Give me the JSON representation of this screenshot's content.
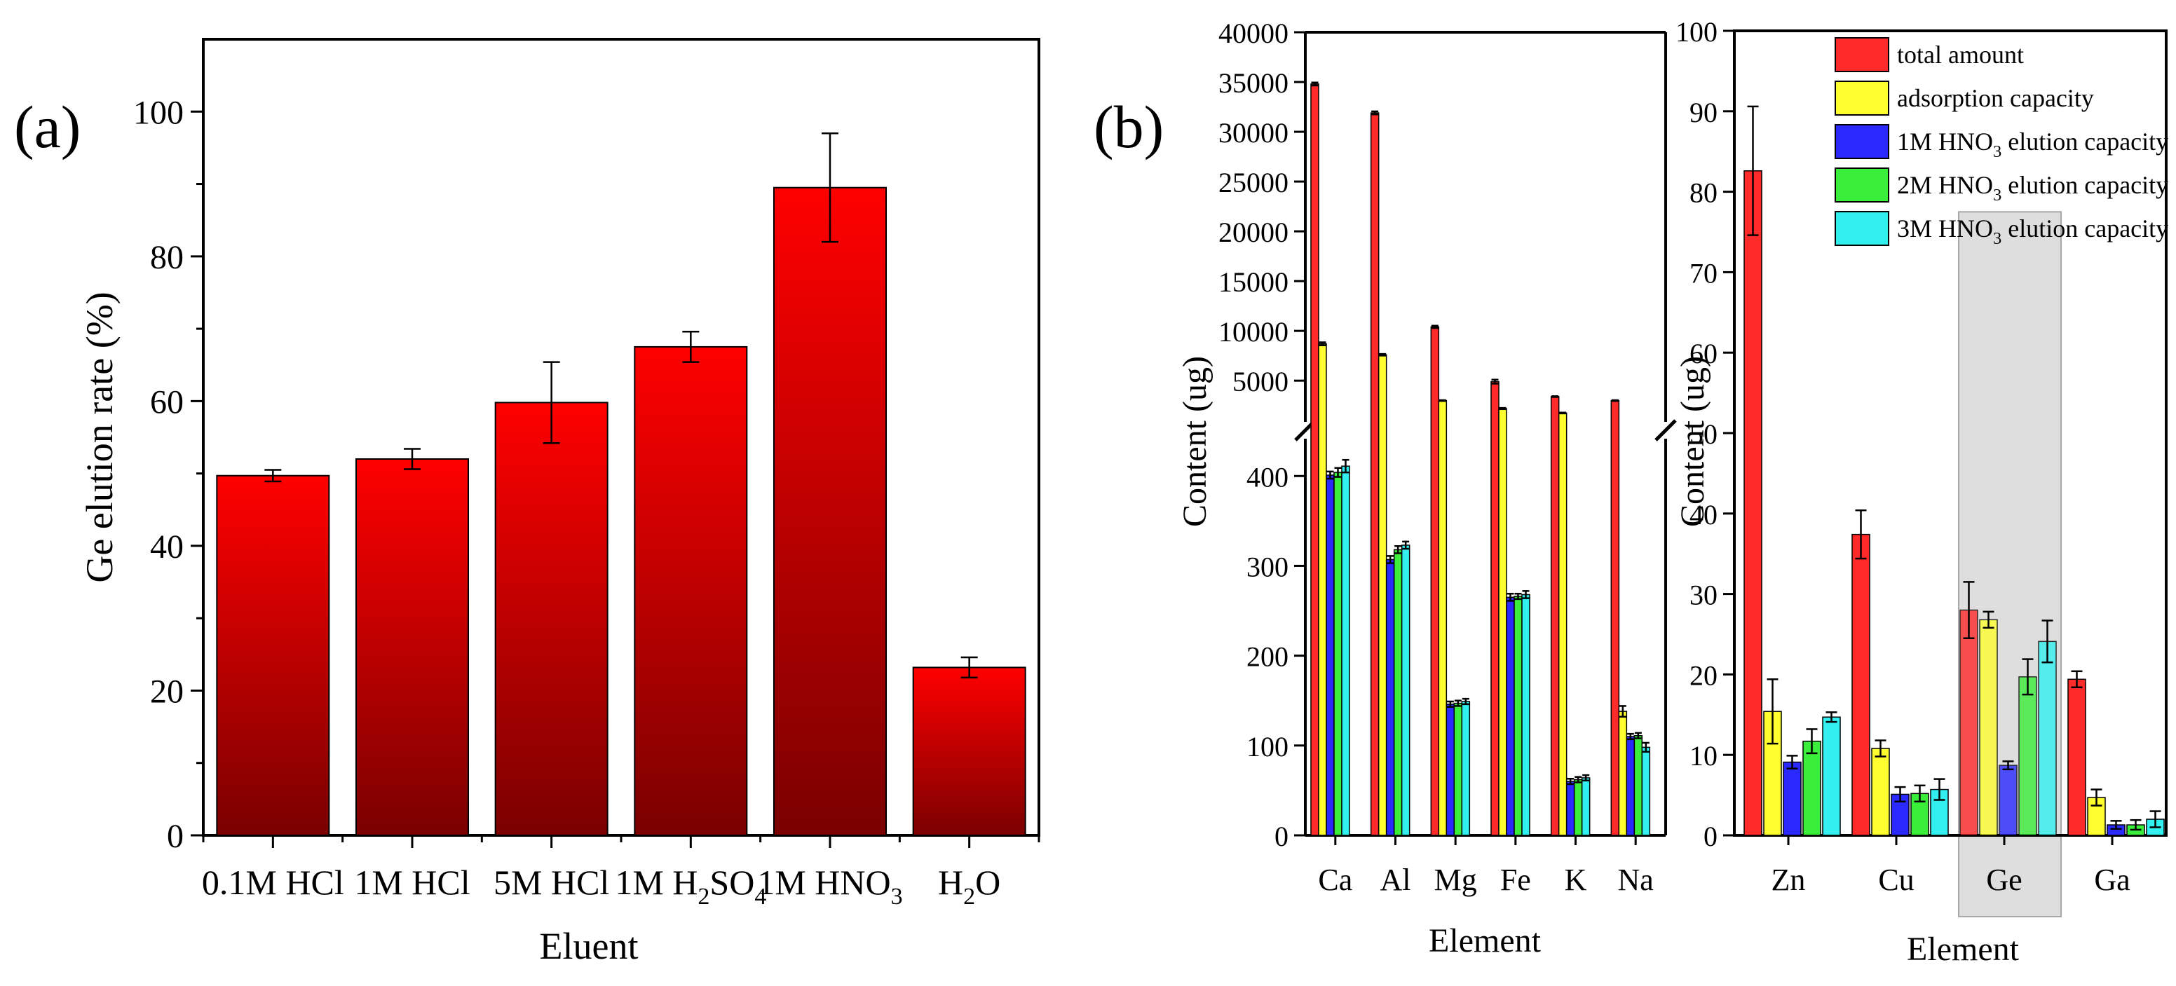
{
  "figure": {
    "panel_a_label": "(a)",
    "panel_b_label": "(b)"
  },
  "colors": {
    "panel_a_bar_top": "#ff0000",
    "panel_a_bar_bottom": "#7a0000",
    "total_amount": "#ff2a2a",
    "adsorption_capacity": "#ffff30",
    "hno3_1m": "#2a2aff",
    "hno3_2m": "#3aee3a",
    "hno3_3m": "#33f0f0",
    "highlight": "#d9d9d9"
  },
  "chart_data": [
    {
      "id": "a",
      "type": "bar",
      "categories": [
        "0.1M HCl",
        "1M HCl",
        "5M HCl",
        "1M H2SO4",
        "1M HNO3",
        "H2O"
      ],
      "category_labels": [
        {
          "main": "0.1M HCl"
        },
        {
          "main": "1M HCl"
        },
        {
          "main": "5M HCl"
        },
        {
          "main": "1M H",
          "sub": "2",
          "rest": "SO",
          "sub2": "4"
        },
        {
          "main": "1M HNO",
          "sub": "3"
        },
        {
          "main": "H",
          "sub": "2",
          "rest": "O"
        }
      ],
      "values": [
        49.7,
        52.0,
        59.8,
        67.5,
        89.5,
        23.2
      ],
      "errors": [
        0.8,
        1.4,
        5.6,
        2.1,
        7.5,
        1.4
      ],
      "xlabel": "Eluent",
      "ylabel": "Ge elution rate (%)",
      "ylim": [
        0,
        110
      ],
      "yticks": [
        0,
        20,
        40,
        60,
        80,
        100
      ],
      "grid": false
    },
    {
      "id": "b-left",
      "type": "bar",
      "categories": [
        "Ca",
        "Al",
        "Mg",
        "Fe",
        "K",
        "Na"
      ],
      "series": [
        {
          "name": "total amount",
          "values": [
            34800,
            31900,
            10400,
            4900,
            3400,
            3000
          ],
          "errors": [
            150,
            150,
            120,
            200,
            40,
            40
          ]
        },
        {
          "name": "adsorption capacity",
          "values": [
            8700,
            7600,
            3000,
            2200,
            1750,
            138
          ],
          "errors": [
            150,
            80,
            40,
            60,
            40,
            6
          ]
        },
        {
          "name": "1M HNO3 elution capacity",
          "values": [
            401,
            307,
            146,
            265,
            60,
            110
          ],
          "errors": [
            4,
            4,
            3,
            4,
            3,
            3
          ]
        },
        {
          "name": "2M HNO3 elution capacity",
          "values": [
            404,
            318,
            147,
            266,
            62,
            111
          ],
          "errors": [
            5,
            4,
            3,
            3,
            3,
            3
          ]
        },
        {
          "name": "3M HNO3 elution capacity",
          "values": [
            411,
            323,
            149,
            268,
            64,
            98
          ],
          "errors": [
            7,
            4,
            3,
            4,
            3,
            5
          ]
        }
      ],
      "xlabel": "Element",
      "ylabel": "Content (ug)",
      "axis_break": true,
      "lower_ylim": [
        0,
        440
      ],
      "lower_yticks": [
        0,
        100,
        200,
        300,
        400
      ],
      "upper_ylim": [
        1000,
        40000
      ],
      "upper_yticks": [
        5000,
        10000,
        15000,
        20000,
        25000,
        30000,
        35000,
        40000
      ],
      "grid": false
    },
    {
      "id": "b-right",
      "type": "bar",
      "categories": [
        "Zn",
        "Cu",
        "Ge",
        "Ga"
      ],
      "highlighted_category": "Ge",
      "series": [
        {
          "name": "total amount",
          "values": [
            82.6,
            37.4,
            28.0,
            19.4
          ],
          "errors": [
            8.0,
            3.0,
            3.5,
            1.0
          ]
        },
        {
          "name": "adsorption capacity",
          "values": [
            15.4,
            10.8,
            26.8,
            4.7
          ],
          "errors": [
            4.0,
            1.0,
            1.0,
            1.0
          ]
        },
        {
          "name": "1M HNO3 elution capacity",
          "values": [
            9.1,
            5.1,
            8.7,
            1.3
          ],
          "errors": [
            0.8,
            0.9,
            0.5,
            0.5
          ]
        },
        {
          "name": "2M HNO3 elution capacity",
          "values": [
            11.7,
            5.2,
            19.7,
            1.3
          ],
          "errors": [
            1.5,
            1.0,
            2.2,
            0.6
          ]
        },
        {
          "name": "3M HNO3 elution capacity",
          "values": [
            14.7,
            5.7,
            24.1,
            2.0
          ],
          "errors": [
            0.6,
            1.3,
            2.6,
            1.0
          ]
        }
      ],
      "legend": [
        {
          "main": "total amount"
        },
        {
          "main": "adsorption capacity"
        },
        {
          "main": "1M HNO",
          "sub": "3",
          "rest": " elution capacity"
        },
        {
          "main": "2M HNO",
          "sub": "3",
          "rest": " elution capacity"
        },
        {
          "main": "3M HNO",
          "sub": "3",
          "rest": " elution capacity"
        }
      ],
      "legend_position": "top-right",
      "xlabel": "Element",
      "ylabel": "Content (ug)",
      "ylim": [
        0,
        100
      ],
      "yticks": [
        0,
        10,
        20,
        30,
        40,
        50,
        60,
        70,
        80,
        90,
        100
      ],
      "grid": false
    }
  ]
}
